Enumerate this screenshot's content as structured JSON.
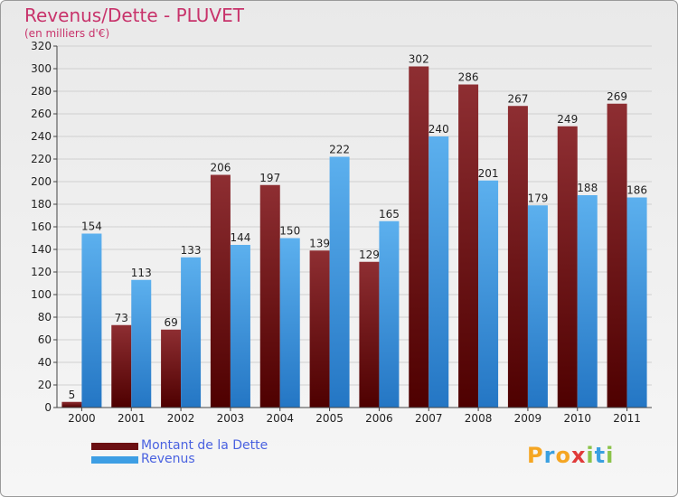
{
  "header": {
    "title": "Revenus/Dette - PLUVET",
    "subtitle": "(en milliers d'€)"
  },
  "legend": {
    "items": [
      {
        "label": "Montant de la Dette",
        "color": "#6b0f12"
      },
      {
        "label": "Revenus",
        "color": "#3d9ee4"
      }
    ]
  },
  "logo": {
    "letters": [
      {
        "ch": "P",
        "color": "#f5a623"
      },
      {
        "ch": "r",
        "color": "#3aa0e0"
      },
      {
        "ch": "o",
        "color": "#f5a623"
      },
      {
        "ch": "x",
        "color": "#e03a3a"
      },
      {
        "ch": "i",
        "color": "#8bc34a"
      },
      {
        "ch": "t",
        "color": "#3aa0e0"
      },
      {
        "ch": "i",
        "color": "#8bc34a"
      }
    ]
  },
  "chart_data": {
    "type": "bar",
    "categories": [
      "2000",
      "2001",
      "2002",
      "2003",
      "2004",
      "2005",
      "2006",
      "2007",
      "2008",
      "2009",
      "2010",
      "2011"
    ],
    "series": [
      {
        "name": "Montant de la Dette",
        "values": [
          5,
          73,
          69,
          206,
          197,
          139,
          129,
          302,
          286,
          267,
          249,
          269
        ],
        "color": "#6b0f12"
      },
      {
        "name": "Revenus",
        "values": [
          154,
          113,
          133,
          144,
          150,
          222,
          165,
          240,
          201,
          179,
          188,
          186
        ],
        "color": "#3d9ee4"
      }
    ],
    "ylim": [
      0,
      320
    ],
    "yticks": [
      0,
      20,
      40,
      60,
      80,
      100,
      120,
      140,
      160,
      180,
      200,
      220,
      240,
      260,
      280,
      300,
      320
    ],
    "grid": true,
    "legend_position": "bottom-left"
  }
}
